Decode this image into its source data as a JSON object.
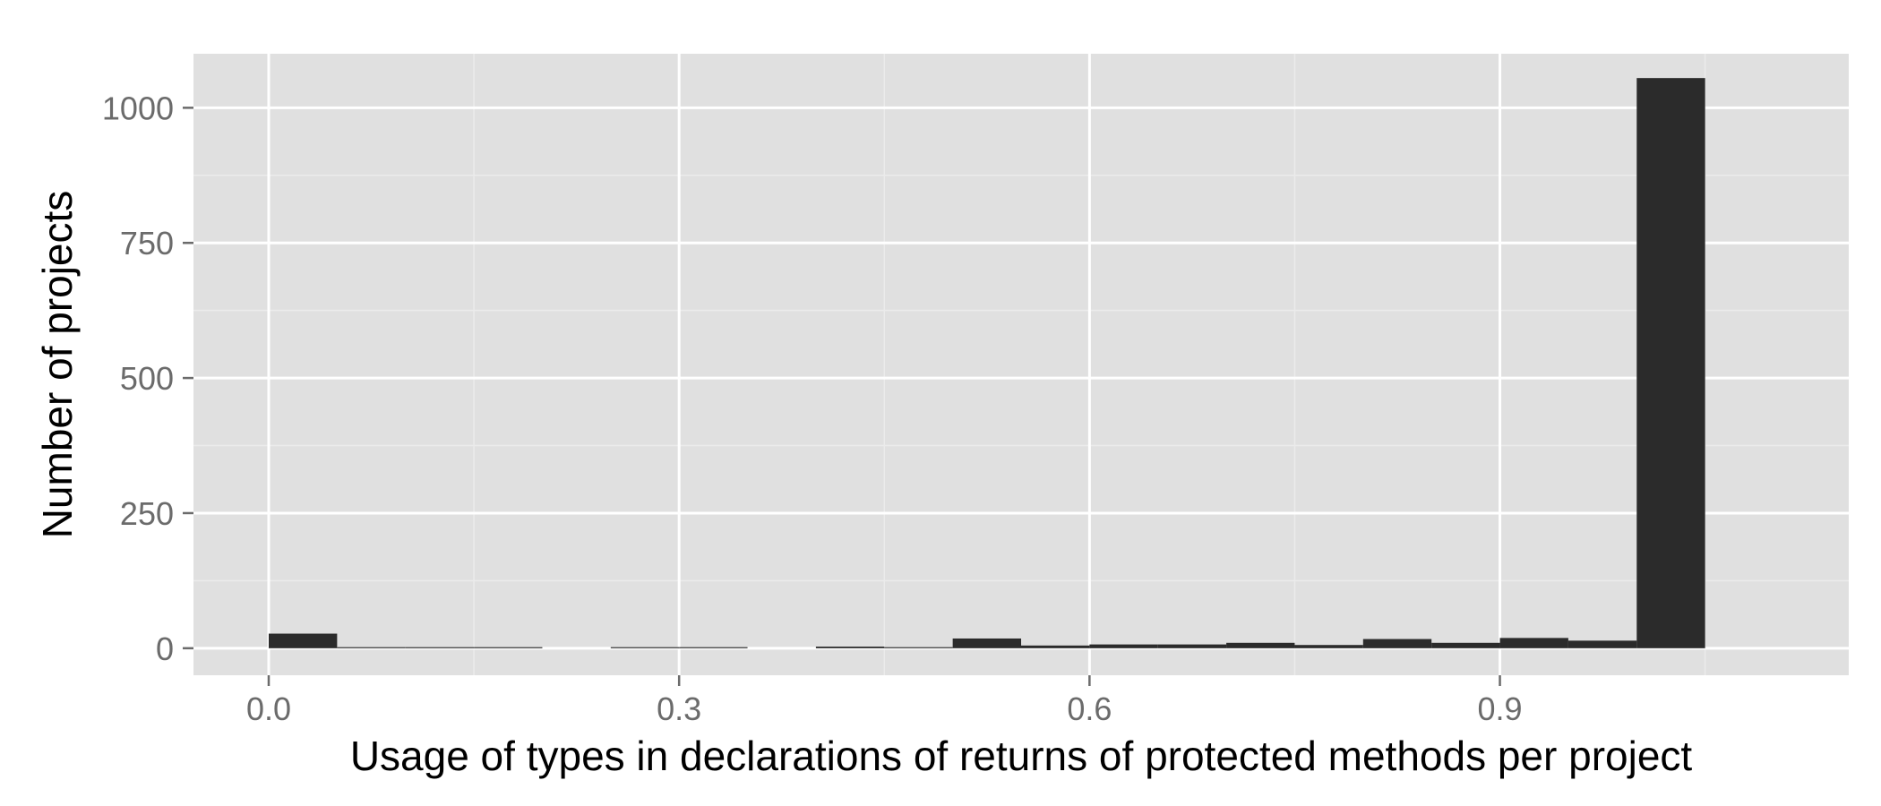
{
  "chart_data": {
    "type": "bar",
    "title": "",
    "xlabel": "Usage of types in declarations of returns of protected methods per project",
    "ylabel": "Number of projects",
    "xlim": [
      -0.055,
      1.155
    ],
    "ylim": [
      -50,
      1100
    ],
    "x_ticks": [
      0.0,
      0.3,
      0.6,
      0.9
    ],
    "x_tick_labels": [
      "0.0",
      "0.3",
      "0.6",
      "0.9"
    ],
    "x_minor_ticks": [
      0.15,
      0.45,
      0.75,
      1.05
    ],
    "y_ticks": [
      0,
      250,
      500,
      750,
      1000
    ],
    "y_tick_labels": [
      "0",
      "250",
      "500",
      "750",
      "1000"
    ],
    "y_minor_ticks": [
      125,
      375,
      625,
      875
    ],
    "bin_width": 0.05,
    "bins_start": [
      0.0,
      0.05,
      0.1,
      0.15,
      0.2,
      0.25,
      0.3,
      0.35,
      0.4,
      0.45,
      0.5,
      0.55,
      0.6,
      0.65,
      0.7,
      0.75,
      0.8,
      0.85,
      0.9,
      0.95,
      1.0
    ],
    "values": [
      27,
      2,
      2,
      2,
      0,
      2,
      2,
      0,
      3,
      2,
      18,
      5,
      7,
      7,
      10,
      6,
      17,
      10,
      19,
      14,
      1055
    ],
    "grid": true,
    "legend": "none",
    "colors": {
      "panel_background": "#e0e0e0",
      "grid_major": "#ffffff",
      "grid_minor": "#ebebeb",
      "bar_fill": "#2b2b2b",
      "tick_label": "#6b6b6b",
      "axis_title": "#000000",
      "tick_mark": "#6b6b6b"
    }
  }
}
